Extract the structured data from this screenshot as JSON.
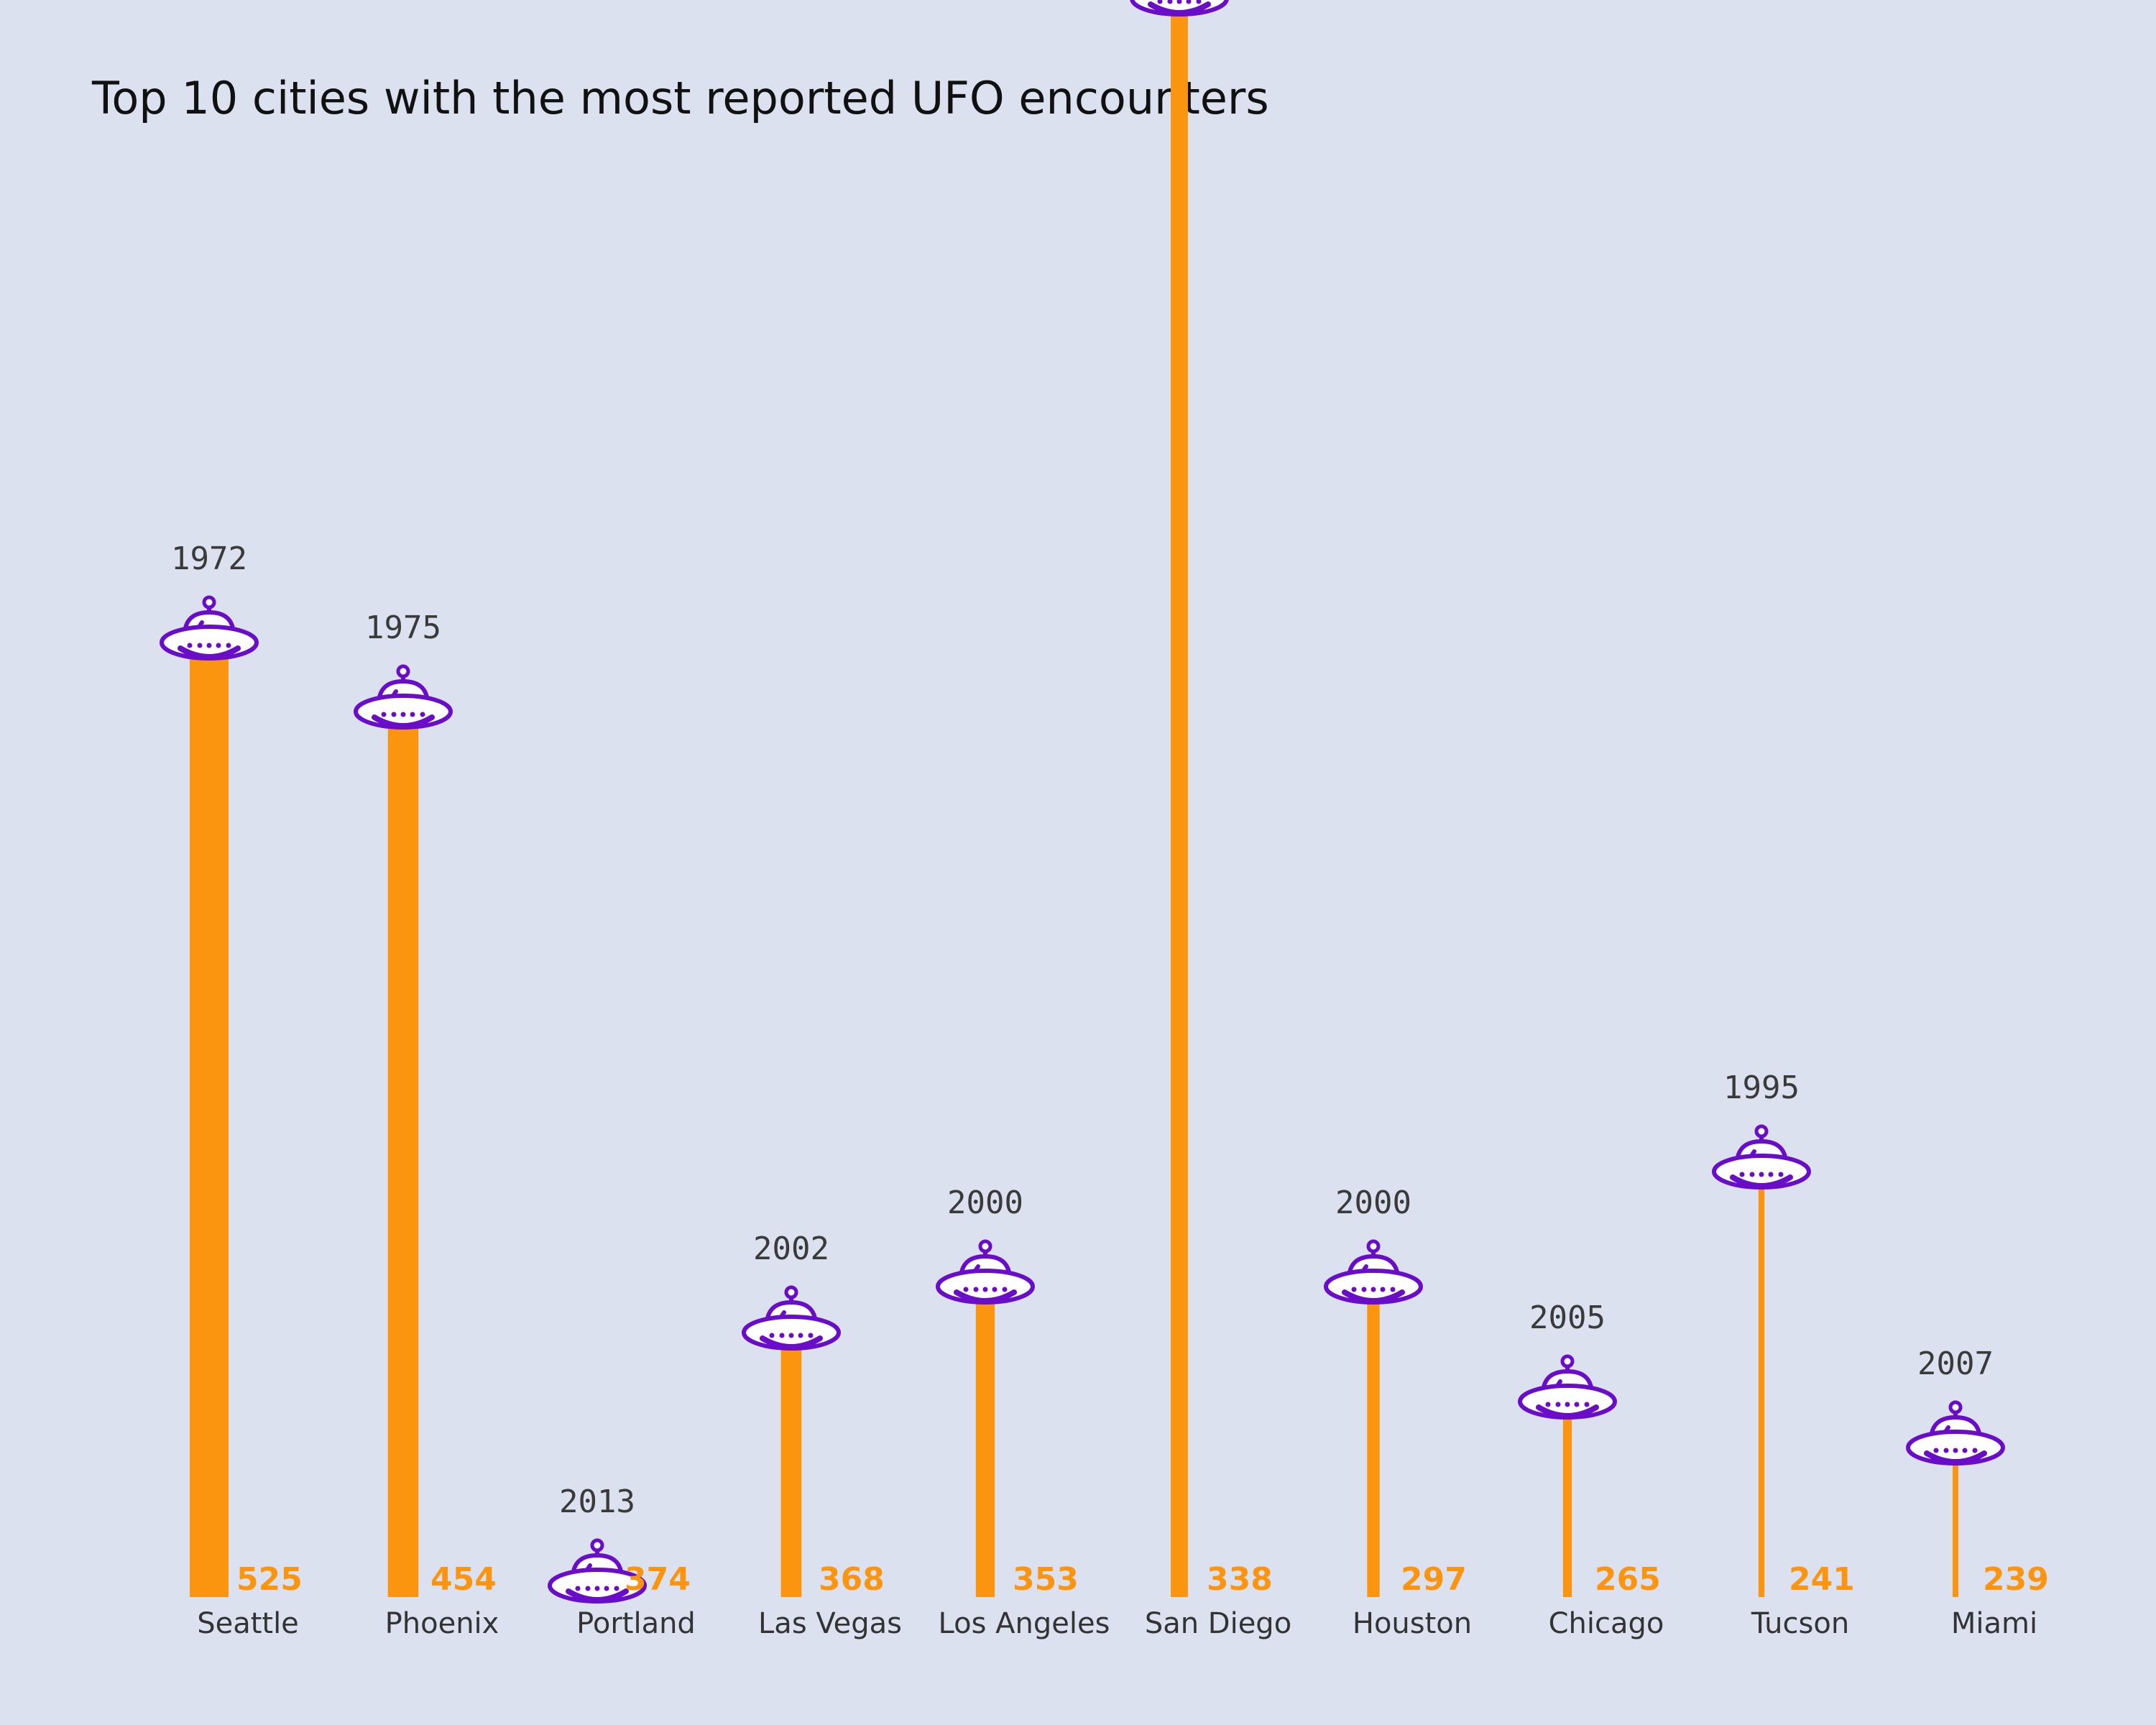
{
  "chart_data": {
    "type": "bar",
    "title": "Top 10 cities with the most reported UFO encounters",
    "categories": [
      "Seattle",
      "Phoenix",
      "Portland",
      "Las Vegas",
      "Los Angeles",
      "San Diego",
      "Houston",
      "Chicago",
      "Tucson",
      "Miami"
    ],
    "series": [
      {
        "values": [
          525,
          454,
          374,
          368,
          353,
          338,
          297,
          265,
          241,
          239
        ]
      }
    ],
    "marker_values": [
      1972,
      1975,
      2013,
      2002,
      2000,
      1944,
      2000,
      2005,
      1995,
      2007
    ],
    "marker_range": [
      1930,
      2030
    ],
    "marker_icon": "ufo-icon",
    "colors": {
      "bar": "#fb9510",
      "value_label": "#fb9510",
      "icon": "#6a0dc9",
      "icon_fill": "#ffffff",
      "background": "#dbe1ef"
    },
    "grid": false
  }
}
